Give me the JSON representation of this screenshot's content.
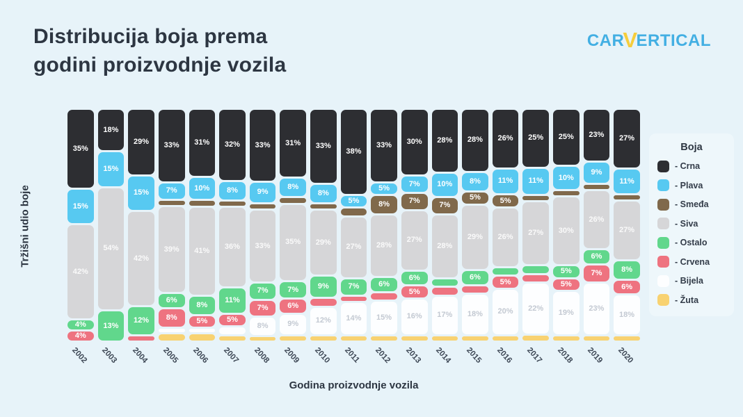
{
  "title": {
    "line1": "Distribucija boja prema",
    "line2": "godini proizvodnje vozila"
  },
  "logo": {
    "part1": "CAR",
    "v": "V",
    "part2": "ERTICAL",
    "blue": "#43afe3",
    "yellow": "#f6cd3c"
  },
  "page_background": "#e7f3f9",
  "chart_data": {
    "type": "bar",
    "subtype": "stacked-100-percent",
    "title": "Distribucija boja prema godini proizvodnje vozila",
    "xlabel": "Godina proizvodnje vozila",
    "ylabel": "Tržišni udio boje",
    "legend_title": "Boja",
    "legend_item_prefix": "- ",
    "legend_position": "right",
    "grid": false,
    "label_threshold": 4,
    "value_suffix": "%",
    "categories": [
      "2002",
      "2003",
      "2004",
      "2005",
      "2006",
      "2007",
      "2008",
      "2009",
      "2010",
      "2011",
      "2012",
      "2013",
      "2014",
      "2015",
      "2016",
      "2017",
      "2018",
      "2019",
      "2020"
    ],
    "series": [
      {
        "key": "crna",
        "name": "Crna",
        "color": "#2d2e32",
        "label_color": "#ffffff",
        "values": [
          35,
          18,
          29,
          33,
          31,
          32,
          33,
          31,
          33,
          38,
          33,
          30,
          28,
          28,
          26,
          25,
          25,
          23,
          27
        ]
      },
      {
        "key": "plava",
        "name": "Plava",
        "color": "#57c9f1",
        "label_color": "#ffffff",
        "values": [
          15,
          15,
          15,
          7,
          10,
          8,
          9,
          8,
          8,
          5,
          5,
          7,
          10,
          8,
          11,
          11,
          10,
          9,
          11
        ]
      },
      {
        "key": "smedja",
        "name": "Smeđa",
        "color": "#80694b",
        "label_color": "#ffffff",
        "values": [
          0,
          0,
          0,
          2,
          2,
          2,
          2,
          2,
          2,
          3,
          8,
          7,
          7,
          5,
          5,
          2,
          2,
          2,
          2
        ]
      },
      {
        "key": "siva",
        "name": "Siva",
        "color": "#d6d6d8",
        "label_color": "#fafafa",
        "values": [
          42,
          54,
          42,
          39,
          41,
          36,
          33,
          35,
          29,
          27,
          28,
          27,
          28,
          29,
          26,
          27,
          30,
          26,
          27
        ]
      },
      {
        "key": "ostalo",
        "name": "Ostalo",
        "color": "#61d78c",
        "label_color": "#ffffff",
        "values": [
          4,
          13,
          12,
          6,
          8,
          11,
          7,
          7,
          9,
          7,
          6,
          6,
          3,
          6,
          3,
          3,
          5,
          6,
          8
        ]
      },
      {
        "key": "crvena",
        "name": "Crvena",
        "color": "#ee7380",
        "label_color": "#ffffff",
        "values": [
          4,
          0,
          2,
          8,
          5,
          5,
          7,
          6,
          3,
          2,
          3,
          5,
          3,
          3,
          5,
          3,
          5,
          7,
          6
        ]
      },
      {
        "key": "bijela",
        "name": "Bijela",
        "color": "#fdfeff",
        "label_color": "#c3c9d2",
        "values": [
          0,
          0,
          0,
          1,
          1,
          3,
          8,
          9,
          12,
          14,
          15,
          16,
          17,
          18,
          20,
          22,
          19,
          23,
          18
        ]
      },
      {
        "key": "zuta",
        "name": "Žuta",
        "color": "#f8d271",
        "label_color": "#ffffff",
        "values": [
          0,
          0,
          0,
          3,
          3,
          2,
          1,
          2,
          2,
          2,
          2,
          2,
          2,
          2,
          2,
          2,
          2,
          2,
          2
        ]
      }
    ]
  }
}
